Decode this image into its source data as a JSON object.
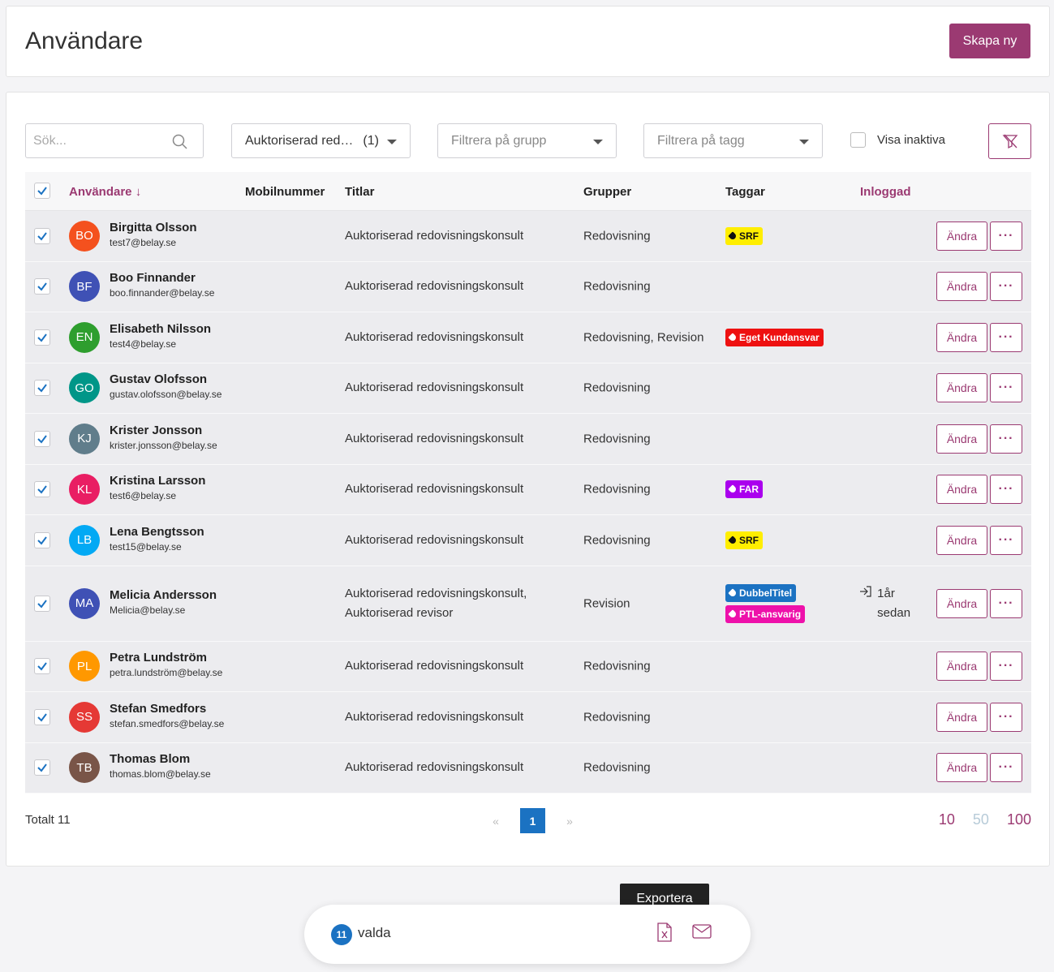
{
  "header": {
    "title": "Användare",
    "create_label": "Skapa ny"
  },
  "filters": {
    "search_placeholder": "Sök...",
    "title_filter": "Auktoriserad red…",
    "title_filter_count": "(1)",
    "group_placeholder": "Filtrera på grupp",
    "tag_placeholder": "Filtrera på tagg",
    "show_inactive_label": "Visa inaktiva"
  },
  "table": {
    "columns": {
      "user": "Användare",
      "sort_arrow": "↓",
      "mobile": "Mobilnummer",
      "titles": "Titlar",
      "groups": "Grupper",
      "tags": "Taggar",
      "login": "Inloggad"
    },
    "edit_label": "Ändra",
    "more_label": "···",
    "rows": [
      {
        "initials": "BO",
        "color": "#f4511e",
        "name": "Birgitta Olsson",
        "email": "test7@belay.se",
        "title": "Auktoriserad redovisningskonsult",
        "group": "Redovisning",
        "tags": [
          {
            "label": "SRF",
            "bg": "#ffee00",
            "fg": "#111"
          }
        ],
        "login": ""
      },
      {
        "initials": "BF",
        "color": "#3f51b5",
        "name": "Boo Finnander",
        "email": "boo.finnander@belay.se",
        "title": "Auktoriserad redovisningskonsult",
        "group": "Redovisning",
        "tags": [],
        "login": ""
      },
      {
        "initials": "EN",
        "color": "#2e9e2e",
        "name": "Elisabeth Nilsson",
        "email": "test4@belay.se",
        "title": "Auktoriserad redovisningskonsult",
        "group": "Redovisning, Revision",
        "tags": [
          {
            "label": "Eget Kundansvar",
            "bg": "#ee1111",
            "fg": "#fff"
          }
        ],
        "login": ""
      },
      {
        "initials": "GO",
        "color": "#009688",
        "name": "Gustav Olofsson",
        "email": "gustav.olofsson@belay.se",
        "title": "Auktoriserad redovisningskonsult",
        "group": "Redovisning",
        "tags": [],
        "login": ""
      },
      {
        "initials": "KJ",
        "color": "#607d8b",
        "name": "Krister Jonsson",
        "email": "krister.jonsson@belay.se",
        "title": "Auktoriserad redovisningskonsult",
        "group": "Redovisning",
        "tags": [],
        "login": ""
      },
      {
        "initials": "KL",
        "color": "#e91e63",
        "name": "Kristina Larsson",
        "email": "test6@belay.se",
        "title": "Auktoriserad redovisningskonsult",
        "group": "Redovisning",
        "tags": [
          {
            "label": "FAR",
            "bg": "#aa00ee",
            "fg": "#fff"
          }
        ],
        "login": ""
      },
      {
        "initials": "LB",
        "color": "#03a9f4",
        "name": "Lena Bengtsson",
        "email": "test15@belay.se",
        "title": "Auktoriserad redovisningskonsult",
        "group": "Redovisning",
        "tags": [
          {
            "label": "SRF",
            "bg": "#ffee00",
            "fg": "#111"
          }
        ],
        "login": ""
      },
      {
        "initials": "MA",
        "color": "#3f51b5",
        "name": "Melicia Andersson",
        "email": "Melicia@belay.se",
        "title": "Auktoriserad redovisningskonsult, Auktoriserad revisor",
        "group": "Revision",
        "tags": [
          {
            "label": "DubbelTitel",
            "bg": "#1b72c2",
            "fg": "#fff"
          },
          {
            "label": "PTL-ansvarig",
            "bg": "#ee11aa",
            "fg": "#fff"
          }
        ],
        "login": "1år sedan"
      },
      {
        "initials": "PL",
        "color": "#ff9800",
        "name": "Petra Lundström",
        "email": "petra.lundström@belay.se",
        "title": "Auktoriserad redovisningskonsult",
        "group": "Redovisning",
        "tags": [],
        "login": ""
      },
      {
        "initials": "SS",
        "color": "#e53935",
        "name": "Stefan Smedfors",
        "email": "stefan.smedfors@belay.se",
        "title": "Auktoriserad redovisningskonsult",
        "group": "Redovisning",
        "tags": [],
        "login": ""
      },
      {
        "initials": "TB",
        "color": "#795548",
        "name": "Thomas Blom",
        "email": "thomas.blom@belay.se",
        "title": "Auktoriserad redovisningskonsult",
        "group": "Redovisning",
        "tags": [],
        "login": ""
      }
    ]
  },
  "footer": {
    "total": "Totalt 11",
    "prev": "«",
    "current_page": "1",
    "next": "»",
    "page_sizes": [
      "10",
      "50",
      "100"
    ]
  },
  "selection": {
    "count": "11",
    "label": "valda",
    "tooltip": "Exportera"
  },
  "colors": {
    "accent": "#9b3a72",
    "primary": "#1b72c2"
  }
}
